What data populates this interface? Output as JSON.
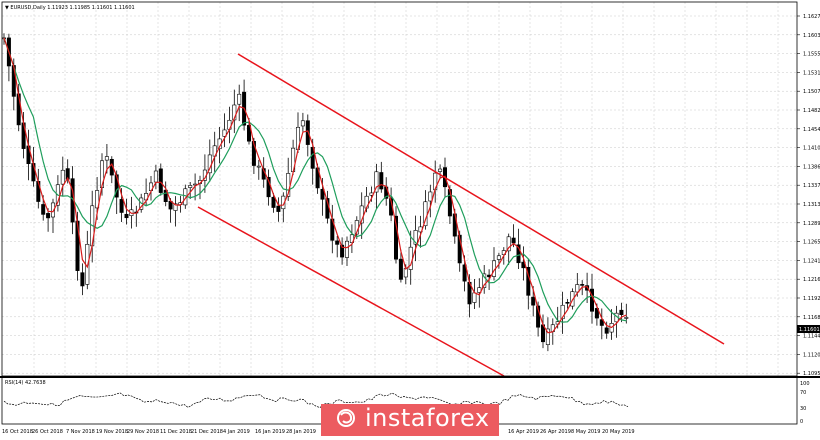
{
  "chart": {
    "header": "▼ EURUSD,Daily 1.11923 1.11985 1.11601 1.11601",
    "current_price": "1.11601",
    "price_labels": [
      "1.16275",
      "1.16035",
      "1.15555",
      "1.15310",
      "1.15070",
      "1.14825",
      "1.14545",
      "1.14100",
      "1.13860",
      "1.13375",
      "1.13135",
      "1.12890",
      "1.12650",
      "1.12410",
      "1.12165",
      "1.11925",
      "1.11680",
      "1.11440",
      "1.11200",
      "1.10955"
    ],
    "date_labels": [
      "16 Oct 2018",
      "26 Oct 2018",
      "7 Nov 2018",
      "19 Nov 2018",
      "29 Nov 2018",
      "11 Dec 2018",
      "21 Dec 2018",
      "4 Jan 2019",
      "16 Jan 2019",
      "28 Jan 2019",
      "16 Apr 2019",
      "26 Apr 2019",
      "8 May 2019",
      "20 May 2019"
    ],
    "rsi_label": "RSI(14) 42.7638",
    "rsi_scale": [
      "100",
      "70",
      "30",
      "0"
    ],
    "colors": {
      "channel": "#e8141c",
      "ma_fast": "#d81b1b",
      "ma_slow": "#1f9e5c",
      "candles": "#000000",
      "logo_bg": "#ec5b60"
    }
  },
  "brand": {
    "logo_text": "instaforex",
    "logo_icon": "instaforex-swirl-icon"
  }
}
